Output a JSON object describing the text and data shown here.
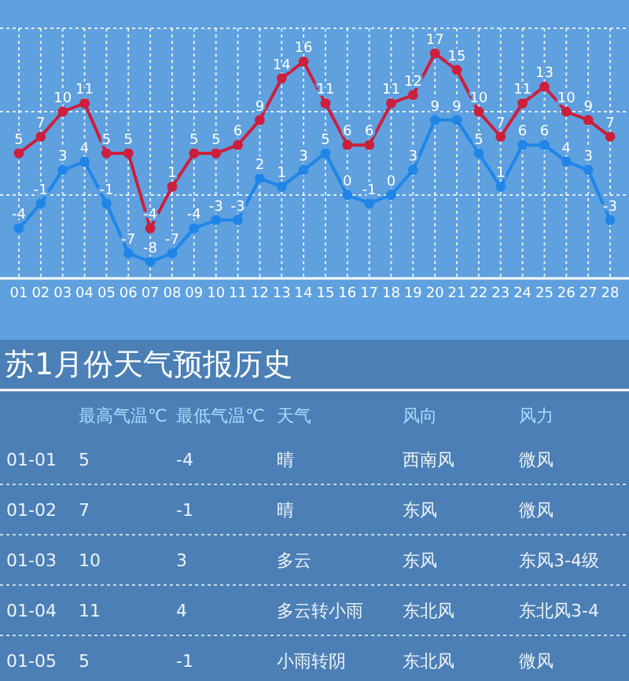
{
  "chart_data": [
    {
      "type": "line",
      "categories": [
        "01",
        "02",
        "03",
        "04",
        "05",
        "06",
        "07",
        "08",
        "09",
        "10",
        "11",
        "12",
        "13",
        "14",
        "15",
        "16",
        "17",
        "18",
        "19",
        "20",
        "21",
        "22",
        "23",
        "24",
        "25",
        "26",
        "27",
        "28"
      ],
      "series": [
        {
          "color": "#cc1f3c",
          "values": [
            5,
            7,
            10,
            11,
            5,
            5,
            -4,
            1,
            5,
            5,
            6,
            9,
            14,
            16,
            11,
            6,
            6,
            11,
            12,
            17,
            15,
            10,
            7,
            11,
            13,
            10,
            9,
            7
          ]
        },
        {
          "color": "#1f86e8",
          "values": [
            -4,
            -1,
            3,
            4,
            -1,
            -7,
            -8,
            -7,
            -4,
            -3,
            -3,
            2,
            1,
            3,
            5,
            0,
            -1,
            0,
            3,
            9,
            9,
            5,
            1,
            6,
            6,
            4,
            3,
            -3
          ]
        }
      ],
      "ylim": [
        -10,
        20
      ],
      "yticks": [
        {
          "value": -10,
          "label": null
        },
        {
          "value": 0,
          "label": null
        },
        {
          "value": 10,
          "label": null
        },
        {
          "value": 20,
          "label": null
        }
      ],
      "grid": true,
      "marker": "circle",
      "data_labels": true,
      "tick_labels": "x"
    },
    {
      "type": "other",
      "title": "苏1月份天气预报历史",
      "categories": [
        null,
        "最高气温℃",
        "最低气温℃",
        "天气",
        "风向",
        "风力"
      ],
      "annotations": [
        "01-01",
        "5",
        "-4",
        "晴",
        "西南风",
        "微风",
        "01-02",
        "7",
        "-1",
        "晴",
        "东风",
        "微风",
        "01-03",
        "10",
        "3",
        "多云",
        "东风",
        "东风3-4级",
        "01-04",
        "11",
        "4",
        "多云转小雨",
        "东北风",
        "东北风3-4",
        "01-05",
        "5",
        "-1",
        "小雨转阴",
        "东北风",
        "微风"
      ]
    }
  ]
}
